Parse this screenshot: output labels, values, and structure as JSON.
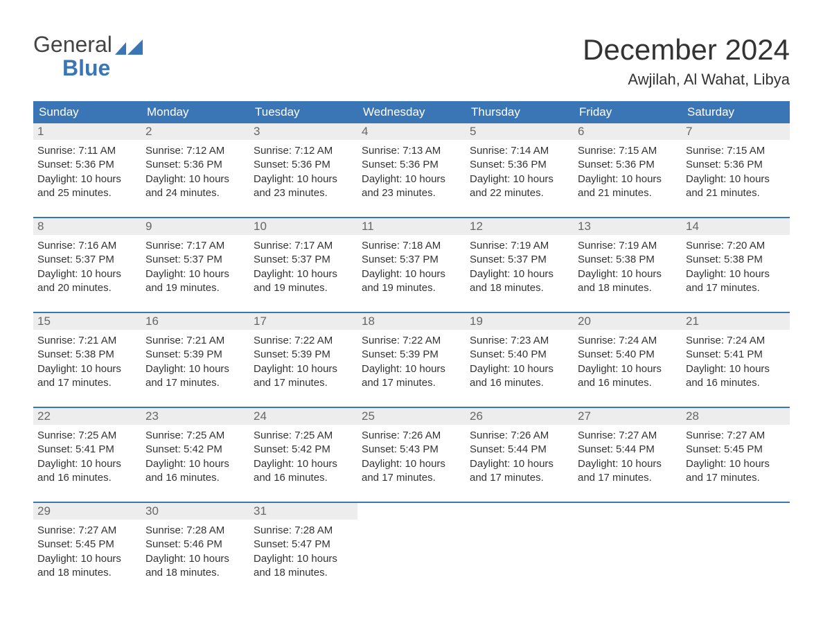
{
  "logo": {
    "line1": "General",
    "line2": "Blue"
  },
  "title": "December 2024",
  "location": "Awjilah, Al Wahat, Libya",
  "colors": {
    "accent": "#3a76b5",
    "header_bg": "#3a76b5",
    "header_text": "#ffffff",
    "daynum_bg": "#ededed",
    "daynum_text": "#666666",
    "body_text": "#333333",
    "page_bg": "#ffffff"
  },
  "weekdays": [
    "Sunday",
    "Monday",
    "Tuesday",
    "Wednesday",
    "Thursday",
    "Friday",
    "Saturday"
  ],
  "field_labels": {
    "sunrise": "Sunrise",
    "sunset": "Sunset",
    "daylight": "Daylight"
  },
  "days": [
    {
      "n": 1,
      "sunrise": "7:11 AM",
      "sunset": "5:36 PM",
      "daylight": "10 hours and 25 minutes."
    },
    {
      "n": 2,
      "sunrise": "7:12 AM",
      "sunset": "5:36 PM",
      "daylight": "10 hours and 24 minutes."
    },
    {
      "n": 3,
      "sunrise": "7:12 AM",
      "sunset": "5:36 PM",
      "daylight": "10 hours and 23 minutes."
    },
    {
      "n": 4,
      "sunrise": "7:13 AM",
      "sunset": "5:36 PM",
      "daylight": "10 hours and 23 minutes."
    },
    {
      "n": 5,
      "sunrise": "7:14 AM",
      "sunset": "5:36 PM",
      "daylight": "10 hours and 22 minutes."
    },
    {
      "n": 6,
      "sunrise": "7:15 AM",
      "sunset": "5:36 PM",
      "daylight": "10 hours and 21 minutes."
    },
    {
      "n": 7,
      "sunrise": "7:15 AM",
      "sunset": "5:36 PM",
      "daylight": "10 hours and 21 minutes."
    },
    {
      "n": 8,
      "sunrise": "7:16 AM",
      "sunset": "5:37 PM",
      "daylight": "10 hours and 20 minutes."
    },
    {
      "n": 9,
      "sunrise": "7:17 AM",
      "sunset": "5:37 PM",
      "daylight": "10 hours and 19 minutes."
    },
    {
      "n": 10,
      "sunrise": "7:17 AM",
      "sunset": "5:37 PM",
      "daylight": "10 hours and 19 minutes."
    },
    {
      "n": 11,
      "sunrise": "7:18 AM",
      "sunset": "5:37 PM",
      "daylight": "10 hours and 19 minutes."
    },
    {
      "n": 12,
      "sunrise": "7:19 AM",
      "sunset": "5:37 PM",
      "daylight": "10 hours and 18 minutes."
    },
    {
      "n": 13,
      "sunrise": "7:19 AM",
      "sunset": "5:38 PM",
      "daylight": "10 hours and 18 minutes."
    },
    {
      "n": 14,
      "sunrise": "7:20 AM",
      "sunset": "5:38 PM",
      "daylight": "10 hours and 17 minutes."
    },
    {
      "n": 15,
      "sunrise": "7:21 AM",
      "sunset": "5:38 PM",
      "daylight": "10 hours and 17 minutes."
    },
    {
      "n": 16,
      "sunrise": "7:21 AM",
      "sunset": "5:39 PM",
      "daylight": "10 hours and 17 minutes."
    },
    {
      "n": 17,
      "sunrise": "7:22 AM",
      "sunset": "5:39 PM",
      "daylight": "10 hours and 17 minutes."
    },
    {
      "n": 18,
      "sunrise": "7:22 AM",
      "sunset": "5:39 PM",
      "daylight": "10 hours and 17 minutes."
    },
    {
      "n": 19,
      "sunrise": "7:23 AM",
      "sunset": "5:40 PM",
      "daylight": "10 hours and 16 minutes."
    },
    {
      "n": 20,
      "sunrise": "7:24 AM",
      "sunset": "5:40 PM",
      "daylight": "10 hours and 16 minutes."
    },
    {
      "n": 21,
      "sunrise": "7:24 AM",
      "sunset": "5:41 PM",
      "daylight": "10 hours and 16 minutes."
    },
    {
      "n": 22,
      "sunrise": "7:25 AM",
      "sunset": "5:41 PM",
      "daylight": "10 hours and 16 minutes."
    },
    {
      "n": 23,
      "sunrise": "7:25 AM",
      "sunset": "5:42 PM",
      "daylight": "10 hours and 16 minutes."
    },
    {
      "n": 24,
      "sunrise": "7:25 AM",
      "sunset": "5:42 PM",
      "daylight": "10 hours and 16 minutes."
    },
    {
      "n": 25,
      "sunrise": "7:26 AM",
      "sunset": "5:43 PM",
      "daylight": "10 hours and 17 minutes."
    },
    {
      "n": 26,
      "sunrise": "7:26 AM",
      "sunset": "5:44 PM",
      "daylight": "10 hours and 17 minutes."
    },
    {
      "n": 27,
      "sunrise": "7:27 AM",
      "sunset": "5:44 PM",
      "daylight": "10 hours and 17 minutes."
    },
    {
      "n": 28,
      "sunrise": "7:27 AM",
      "sunset": "5:45 PM",
      "daylight": "10 hours and 17 minutes."
    },
    {
      "n": 29,
      "sunrise": "7:27 AM",
      "sunset": "5:45 PM",
      "daylight": "10 hours and 18 minutes."
    },
    {
      "n": 30,
      "sunrise": "7:28 AM",
      "sunset": "5:46 PM",
      "daylight": "10 hours and 18 minutes."
    },
    {
      "n": 31,
      "sunrise": "7:28 AM",
      "sunset": "5:47 PM",
      "daylight": "10 hours and 18 minutes."
    }
  ],
  "grid": {
    "start_weekday_index": 0,
    "rows": 5,
    "cols": 7
  }
}
